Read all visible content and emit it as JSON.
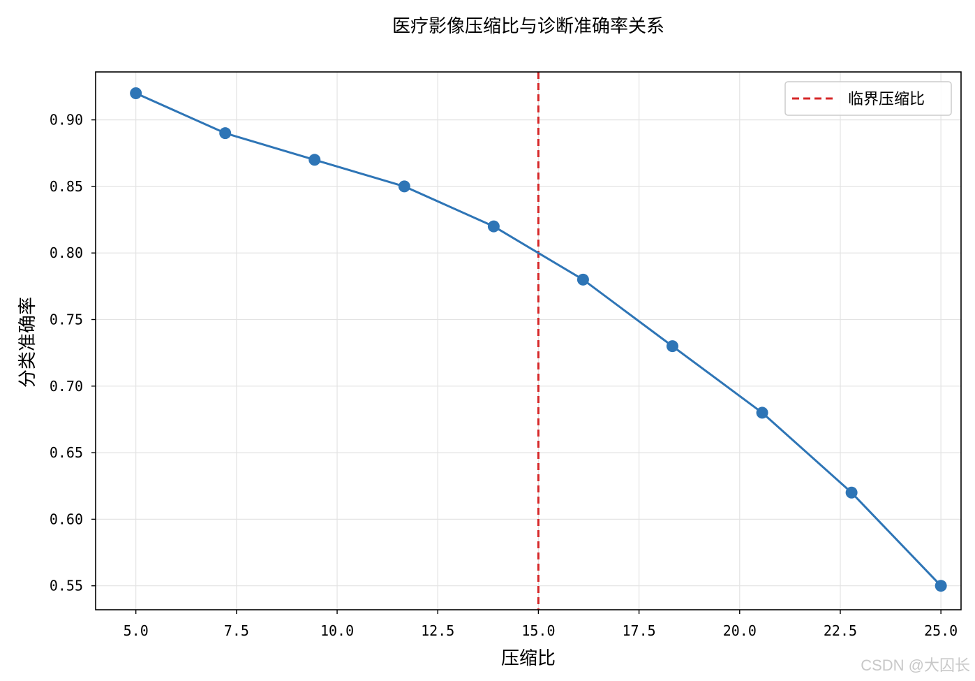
{
  "chart_data": {
    "type": "line",
    "title": "医疗影像压缩比与诊断准确率关系",
    "xlabel": "压缩比",
    "ylabel": "分类准确率",
    "xlim": [
      4.0,
      25.5
    ],
    "ylim": [
      0.532,
      0.936
    ],
    "x_ticks": [
      5.0,
      7.5,
      10.0,
      12.5,
      15.0,
      17.5,
      20.0,
      22.5,
      25.0
    ],
    "x_tick_labels": [
      "5.0",
      "7.5",
      "10.0",
      "12.5",
      "15.0",
      "17.5",
      "20.0",
      "22.5",
      "25.0"
    ],
    "y_ticks": [
      0.55,
      0.6,
      0.65,
      0.7,
      0.75,
      0.8,
      0.85,
      0.9
    ],
    "y_tick_labels": [
      "0.55",
      "0.60",
      "0.65",
      "0.70",
      "0.75",
      "0.80",
      "0.85",
      "0.90"
    ],
    "grid": true,
    "series": [
      {
        "color": "#2e75b6",
        "x": [
          5.0,
          7.22,
          9.44,
          11.67,
          13.89,
          16.11,
          18.33,
          20.56,
          22.78,
          25.0
        ],
        "y": [
          0.92,
          0.89,
          0.87,
          0.85,
          0.82,
          0.78,
          0.73,
          0.68,
          0.62,
          0.55
        ]
      }
    ],
    "reference_line": {
      "name": "临界压缩比",
      "x": 15.0,
      "color": "#d62728",
      "style": "dashed"
    },
    "legend": {
      "position": "top-right",
      "entries": [
        "临界压缩比"
      ]
    }
  },
  "watermark": "CSDN @大囚长"
}
